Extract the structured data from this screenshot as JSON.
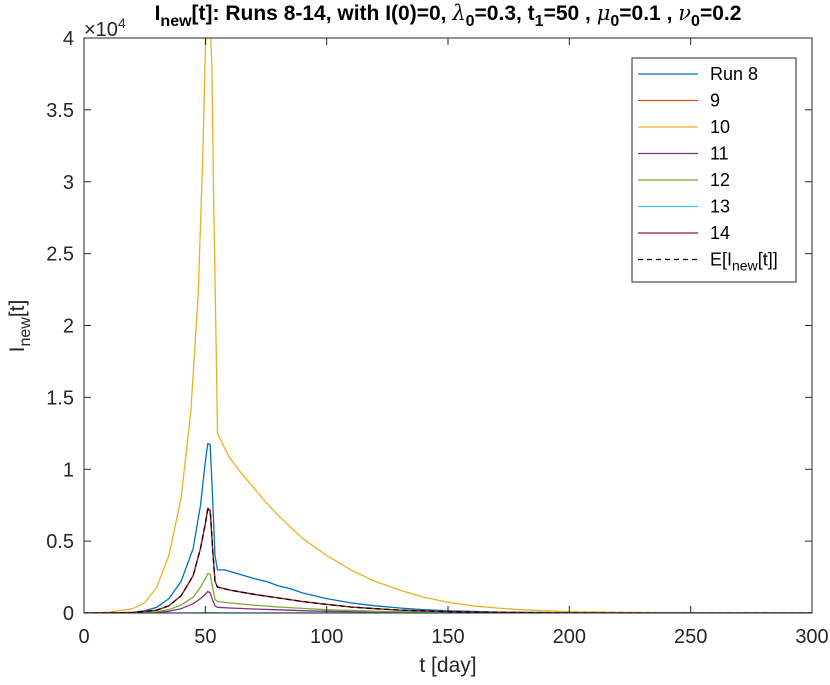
{
  "chart_data": {
    "type": "line",
    "title": {
      "parts": [
        {
          "text": "I",
          "style": "normal"
        },
        {
          "text": "new",
          "style": "sub"
        },
        {
          "text": "[t]: Runs 8-14, with I(0)=0, ",
          "style": "normal"
        },
        {
          "text": "λ",
          "style": "greek"
        },
        {
          "text": "0",
          "style": "sub"
        },
        {
          "text": "=0.3,  t",
          "style": "normal"
        },
        {
          "text": "1",
          "style": "sub"
        },
        {
          "text": "=50 , ",
          "style": "normal"
        },
        {
          "text": "μ",
          "style": "greek"
        },
        {
          "text": "0",
          "style": "sub"
        },
        {
          "text": "=0.1 , ",
          "style": "normal"
        },
        {
          "text": "ν",
          "style": "greek"
        },
        {
          "text": "0",
          "style": "sub"
        },
        {
          "text": "=0.2",
          "style": "normal"
        }
      ]
    },
    "xlabel": "t [day]",
    "ylabel": {
      "main": "I",
      "sub": "new",
      "suffix": "[t]"
    },
    "y_exponent": {
      "prefix": "×10",
      "power": "4"
    },
    "xlim": [
      0,
      300
    ],
    "ylim": [
      0,
      40000
    ],
    "x_ticks": [
      0,
      50,
      100,
      150,
      200,
      250,
      300
    ],
    "x_tick_labels": [
      "0",
      "50",
      "100",
      "150",
      "200",
      "250",
      "300"
    ],
    "y_ticks": [
      0,
      5000,
      10000,
      15000,
      20000,
      25000,
      30000,
      35000,
      40000
    ],
    "y_tick_labels": [
      "0",
      "0.5",
      "1",
      "1.5",
      "2",
      "2.5",
      "3",
      "3.5",
      "4"
    ],
    "grid": false,
    "legend_position": "top-right",
    "series": [
      {
        "name": "Run 8",
        "color": "#0072BD",
        "dash": "none",
        "width": 1.3,
        "points": [
          [
            0,
            0
          ],
          [
            10,
            0
          ],
          [
            20,
            50
          ],
          [
            25,
            150
          ],
          [
            30,
            400
          ],
          [
            35,
            1000
          ],
          [
            40,
            2200
          ],
          [
            45,
            4500
          ],
          [
            48,
            7500
          ],
          [
            50,
            10500
          ],
          [
            51,
            11800
          ],
          [
            52,
            11700
          ],
          [
            53,
            8000
          ],
          [
            54,
            4000
          ],
          [
            55,
            3000
          ],
          [
            58,
            3000
          ],
          [
            62,
            2800
          ],
          [
            66,
            2600
          ],
          [
            70,
            2400
          ],
          [
            75,
            2200
          ],
          [
            80,
            1900
          ],
          [
            85,
            1700
          ],
          [
            90,
            1400
          ],
          [
            95,
            1200
          ],
          [
            100,
            1000
          ],
          [
            110,
            700
          ],
          [
            120,
            500
          ],
          [
            130,
            350
          ],
          [
            140,
            230
          ],
          [
            150,
            150
          ],
          [
            170,
            70
          ],
          [
            200,
            20
          ],
          [
            250,
            0
          ],
          [
            300,
            0
          ]
        ]
      },
      {
        "name": "9",
        "color": "#D95319",
        "dash": "none",
        "width": 1.3,
        "points": [
          [
            0,
            0
          ],
          [
            20,
            30
          ],
          [
            30,
            200
          ],
          [
            35,
            500
          ],
          [
            40,
            1200
          ],
          [
            45,
            2600
          ],
          [
            48,
            4500
          ],
          [
            50,
            6200
          ],
          [
            51,
            7200
          ],
          [
            52,
            7100
          ],
          [
            53,
            4500
          ],
          [
            54,
            2200
          ],
          [
            55,
            1800
          ],
          [
            60,
            1600
          ],
          [
            65,
            1450
          ],
          [
            70,
            1300
          ],
          [
            80,
            1050
          ],
          [
            90,
            800
          ],
          [
            100,
            600
          ],
          [
            110,
            420
          ],
          [
            120,
            300
          ],
          [
            130,
            200
          ],
          [
            150,
            100
          ],
          [
            170,
            40
          ],
          [
            200,
            10
          ],
          [
            250,
            0
          ],
          [
            300,
            0
          ]
        ]
      },
      {
        "name": "10",
        "color": "#EDB120",
        "dash": "none",
        "width": 1.3,
        "points": [
          [
            0,
            0
          ],
          [
            10,
            50
          ],
          [
            20,
            300
          ],
          [
            25,
            700
          ],
          [
            30,
            1800
          ],
          [
            35,
            4000
          ],
          [
            40,
            8000
          ],
          [
            44,
            14000
          ],
          [
            47,
            22000
          ],
          [
            49,
            32000
          ],
          [
            50,
            39000
          ],
          [
            50.7,
            41000
          ],
          [
            52,
            41000
          ],
          [
            52.7,
            38000
          ],
          [
            53.5,
            28000
          ],
          [
            54.5,
            18000
          ],
          [
            55,
            12500
          ],
          [
            57,
            11800
          ],
          [
            60,
            10800
          ],
          [
            65,
            9700
          ],
          [
            70,
            8700
          ],
          [
            75,
            7700
          ],
          [
            80,
            6800
          ],
          [
            85,
            6000
          ],
          [
            90,
            5200
          ],
          [
            95,
            4600
          ],
          [
            100,
            4000
          ],
          [
            110,
            3000
          ],
          [
            120,
            2200
          ],
          [
            130,
            1600
          ],
          [
            140,
            1100
          ],
          [
            150,
            750
          ],
          [
            160,
            500
          ],
          [
            170,
            350
          ],
          [
            180,
            230
          ],
          [
            190,
            150
          ],
          [
            200,
            100
          ],
          [
            220,
            50
          ],
          [
            250,
            10
          ],
          [
            300,
            0
          ]
        ]
      },
      {
        "name": "11",
        "color": "#7E2F8E",
        "dash": "none",
        "width": 1.3,
        "points": [
          [
            0,
            0
          ],
          [
            20,
            10
          ],
          [
            30,
            50
          ],
          [
            35,
            120
          ],
          [
            40,
            300
          ],
          [
            45,
            650
          ],
          [
            48,
            1000
          ],
          [
            50,
            1300
          ],
          [
            51,
            1500
          ],
          [
            52,
            1400
          ],
          [
            53,
            900
          ],
          [
            54,
            500
          ],
          [
            55,
            400
          ],
          [
            60,
            350
          ],
          [
            70,
            280
          ],
          [
            80,
            220
          ],
          [
            90,
            160
          ],
          [
            100,
            120
          ],
          [
            120,
            60
          ],
          [
            150,
            20
          ],
          [
            200,
            0
          ],
          [
            300,
            0
          ]
        ]
      },
      {
        "name": "12",
        "color": "#77AC30",
        "dash": "none",
        "width": 1.3,
        "points": [
          [
            0,
            0
          ],
          [
            20,
            15
          ],
          [
            30,
            100
          ],
          [
            35,
            230
          ],
          [
            40,
            550
          ],
          [
            45,
            1100
          ],
          [
            48,
            1800
          ],
          [
            50,
            2400
          ],
          [
            51,
            2750
          ],
          [
            52,
            2700
          ],
          [
            53,
            1800
          ],
          [
            54,
            950
          ],
          [
            55,
            800
          ],
          [
            60,
            700
          ],
          [
            65,
            620
          ],
          [
            70,
            550
          ],
          [
            80,
            420
          ],
          [
            90,
            320
          ],
          [
            100,
            230
          ],
          [
            120,
            120
          ],
          [
            150,
            40
          ],
          [
            200,
            5
          ],
          [
            300,
            0
          ]
        ]
      },
      {
        "name": "13",
        "color": "#4DBEEE",
        "dash": "none",
        "width": 1.3,
        "points": [
          [
            0,
            0
          ],
          [
            30,
            0
          ],
          [
            45,
            10
          ],
          [
            51,
            20
          ],
          [
            55,
            15
          ],
          [
            80,
            5
          ],
          [
            300,
            0
          ]
        ]
      },
      {
        "name": "14",
        "color": "#A2142F",
        "dash": "none",
        "width": 1.3,
        "points": [
          [
            0,
            0
          ],
          [
            20,
            30
          ],
          [
            30,
            200
          ],
          [
            35,
            500
          ],
          [
            40,
            1200
          ],
          [
            45,
            2600
          ],
          [
            48,
            4500
          ],
          [
            50,
            6200
          ],
          [
            51,
            7300
          ],
          [
            52,
            7150
          ],
          [
            53,
            4500
          ],
          [
            54,
            2200
          ],
          [
            55,
            1800
          ],
          [
            60,
            1600
          ],
          [
            65,
            1450
          ],
          [
            70,
            1300
          ],
          [
            80,
            1050
          ],
          [
            90,
            800
          ],
          [
            100,
            600
          ],
          [
            110,
            420
          ],
          [
            120,
            300
          ],
          [
            130,
            200
          ],
          [
            150,
            100
          ],
          [
            170,
            40
          ],
          [
            200,
            10
          ],
          [
            250,
            0
          ],
          [
            300,
            0
          ]
        ]
      },
      {
        "name": "E[I_new[t]]",
        "legend_parts": [
          {
            "text": "E[I",
            "style": "normal"
          },
          {
            "text": "new",
            "style": "sub"
          },
          {
            "text": "[t]]",
            "style": "normal"
          }
        ],
        "color": "#000000",
        "dash": "5,4",
        "width": 1.3,
        "points": [
          [
            0,
            0
          ],
          [
            20,
            30
          ],
          [
            30,
            200
          ],
          [
            35,
            500
          ],
          [
            40,
            1200
          ],
          [
            45,
            2600
          ],
          [
            48,
            4500
          ],
          [
            50,
            6200
          ],
          [
            51,
            7200
          ],
          [
            52,
            7100
          ],
          [
            53,
            4500
          ],
          [
            54,
            2200
          ],
          [
            55,
            1800
          ],
          [
            60,
            1600
          ],
          [
            65,
            1450
          ],
          [
            70,
            1300
          ],
          [
            80,
            1050
          ],
          [
            90,
            800
          ],
          [
            100,
            600
          ],
          [
            110,
            420
          ],
          [
            120,
            300
          ],
          [
            130,
            200
          ],
          [
            150,
            100
          ],
          [
            170,
            40
          ],
          [
            200,
            10
          ],
          [
            250,
            0
          ],
          [
            300,
            0
          ]
        ]
      }
    ]
  }
}
